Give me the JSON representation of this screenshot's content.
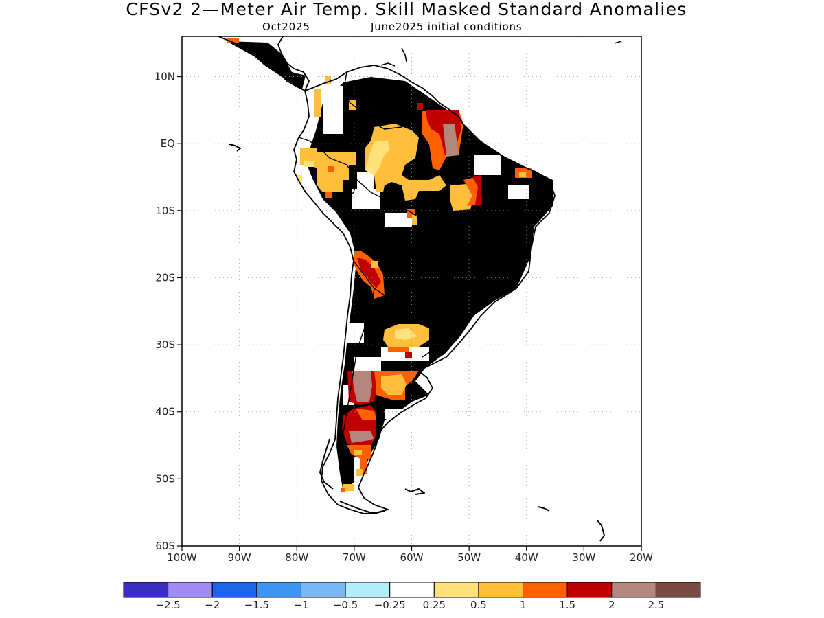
{
  "title": "CFSv2 2—Meter Air Temp. Skill Masked Standard Anomalies",
  "subtitle": {
    "month": "Oct2025",
    "initial_conditions": "June2025 initial conditions"
  },
  "axes": {
    "lat_ticks": [
      "10N",
      "EQ",
      "10S",
      "20S",
      "30S",
      "40S",
      "50S",
      "60S"
    ],
    "lon_ticks": [
      "100W",
      "90W",
      "80W",
      "70W",
      "60W",
      "50W",
      "40W",
      "30W",
      "20W"
    ],
    "lat_range": [
      -60,
      16
    ],
    "lon_range": [
      -100,
      -20
    ]
  },
  "colorbar": {
    "colors": [
      "#3b2cc2",
      "#9f8df5",
      "#1e64e6",
      "#3f96f2",
      "#79b8f7",
      "#b2eefa",
      "#ffffff",
      "#ffe27a",
      "#ffbe3c",
      "#ff6000",
      "#c00000",
      "#b3877c",
      "#7a4b40"
    ],
    "labels": [
      "−2.5",
      "−2",
      "−1.5",
      "−1",
      "−0.5",
      "−0.25",
      "0.25",
      "0.5",
      "1",
      "1.5",
      "2",
      "2.5"
    ]
  },
  "colors": {
    "skill_mask": "#dedede",
    "coastline": "#000000",
    "grid": "#999999"
  }
}
